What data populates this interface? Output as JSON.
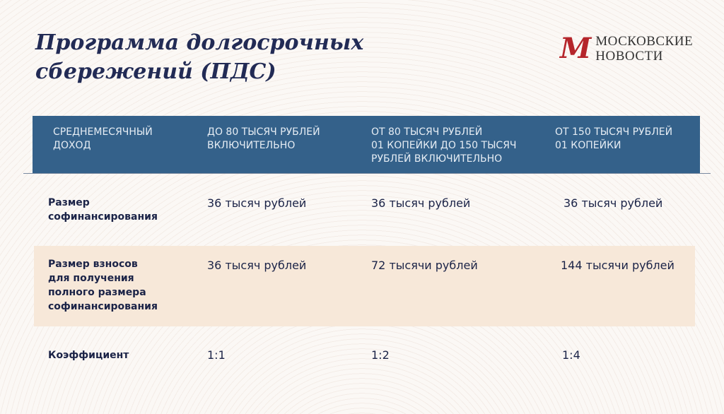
{
  "title_lines": [
    "Программа долгосрочных",
    "сбережений (ПДС)"
  ],
  "logo": {
    "mark": "М",
    "line1": "МОСКОВСКИЕ",
    "line2": "НОВОСТИ",
    "color": "#b5252b"
  },
  "colors": {
    "header": "#34618a",
    "shaded_row": "#f7e8d9",
    "text": "#1f2a4f"
  },
  "table": {
    "headers": [
      [
        "Среднемесячный",
        "доход"
      ],
      [
        "До 80 тысяч рублей",
        "включительно"
      ],
      [
        "От 80 тысяч рублей",
        "01 копейки до 150 тысяч",
        "рублей включительно"
      ],
      [
        "От 150 тысяч рублей",
        "01 копейки"
      ]
    ],
    "rows": [
      {
        "label": [
          "Размер",
          "софинансирования"
        ],
        "values": [
          "36 тысяч рублей",
          "36 тысяч рублей",
          "36 тысяч рублей"
        ]
      },
      {
        "label": [
          "Размер взносов",
          "для получения",
          "полного размера",
          "софинансирования"
        ],
        "values": [
          "36 тысяч рублей",
          "72 тысячи рублей",
          "144 тысячи рублей"
        ]
      },
      {
        "label": [
          "Коэффициент"
        ],
        "values": [
          "1:1",
          "1:2",
          "1:4"
        ]
      }
    ]
  }
}
